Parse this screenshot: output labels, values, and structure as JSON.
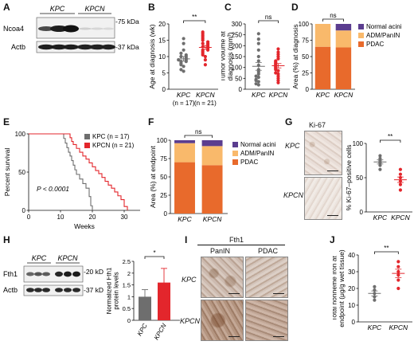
{
  "panels": {
    "A": {
      "label": "A",
      "groups": [
        "KPC",
        "KPCN"
      ],
      "proteins": [
        "Ncoa4",
        "Actb"
      ],
      "markers": [
        "-75 kDa",
        "-37 kDa"
      ]
    },
    "B": {
      "label": "B",
      "sig": "**"
    },
    "C": {
      "label": "C",
      "sig": "ns"
    },
    "D": {
      "label": "D",
      "sig": "ns"
    },
    "E": {
      "label": "E",
      "pvalue": "P < 0.0001"
    },
    "F": {
      "label": "F",
      "sig": "ns"
    },
    "G": {
      "label": "G",
      "stain": "Ki-67",
      "rows": [
        "KPC",
        "KPCN"
      ],
      "sig": "**"
    },
    "H": {
      "label": "H",
      "groups": [
        "KPC",
        "KPCN"
      ],
      "proteins": [
        "Fth1",
        "Actb"
      ],
      "markers": [
        "-20 kDa",
        "-37 kDa"
      ],
      "sig": "*"
    },
    "I": {
      "label": "I",
      "stain": "Fth1",
      "columns": [
        "PanIN",
        "PDAC"
      ],
      "rows": [
        "KPC",
        "KPCN"
      ]
    },
    "J": {
      "label": "J",
      "sig": "**"
    }
  },
  "colors": {
    "kpc": "#6e6e6e",
    "kpcn": "#e3262c",
    "normal": "#5b3d8f",
    "adm": "#f9b96b",
    "pdac": "#e86a2c"
  },
  "chart_data": [
    {
      "panel": "B",
      "type": "scatter",
      "ylabel": "Age at diagnosis (wk)",
      "categories": [
        "KPC",
        "KPCN"
      ],
      "category_notes": [
        "(n = 17)",
        "(n = 21)"
      ],
      "ylim": [
        0,
        20
      ],
      "yticks": [
        0,
        5,
        10,
        15,
        20
      ],
      "series": [
        {
          "name": "KPC",
          "values": [
            5.5,
            6,
            7,
            7.5,
            8,
            8.5,
            8.5,
            9,
            9,
            9.5,
            10,
            10,
            10.5,
            11,
            12,
            14,
            15.5
          ],
          "mean": 9.3,
          "sem": 0.7
        },
        {
          "name": "KPCN",
          "values": [
            7.5,
            9,
            10,
            10.5,
            11,
            11.5,
            12,
            12,
            12.5,
            13,
            13,
            13.5,
            14,
            14,
            14.5,
            15,
            15.5,
            16,
            16.5,
            17,
            17.5
          ],
          "mean": 12.8,
          "sem": 0.6
        }
      ]
    },
    {
      "panel": "C",
      "type": "scatter",
      "ylabel": "Tumor volume at diagnosis (mm³)",
      "categories": [
        "KPC",
        "KPCN"
      ],
      "ylim": [
        0,
        300
      ],
      "yticks": [
        0,
        50,
        100,
        150,
        200,
        250,
        300
      ],
      "series": [
        {
          "name": "KPC",
          "values": [
            20,
            25,
            35,
            40,
            45,
            55,
            60,
            70,
            80,
            90,
            110,
            130,
            150,
            180,
            210,
            230,
            255
          ],
          "mean": 105,
          "sem": 18
        },
        {
          "name": "KPCN",
          "values": [
            30,
            40,
            50,
            60,
            70,
            75,
            85,
            90,
            95,
            100,
            105,
            110,
            115,
            120,
            125,
            130,
            140,
            150,
            160,
            170,
            185
          ],
          "mean": 108,
          "sem": 10
        }
      ]
    },
    {
      "panel": "D",
      "type": "bar",
      "stacked": true,
      "ylabel": "Area (%) at diagnosis",
      "categories": [
        "KPC",
        "KPCN"
      ],
      "ylim": [
        0,
        100
      ],
      "yticks": [
        0,
        25,
        50,
        75,
        100
      ],
      "legend": "right",
      "series": [
        {
          "name": "PDAC",
          "values": [
            65,
            64
          ]
        },
        {
          "name": "ADM/PanIN",
          "values": [
            35,
            26
          ]
        },
        {
          "name": "Normal acini",
          "values": [
            0,
            10
          ]
        }
      ]
    },
    {
      "panel": "E",
      "type": "line",
      "ylabel": "Percent survival",
      "xlabel": "Weeks",
      "xlim": [
        0,
        35
      ],
      "ylim": [
        0,
        100
      ],
      "xticks": [
        0,
        10,
        20,
        30
      ],
      "yticks": [
        0,
        50,
        100
      ],
      "legend": "top-right",
      "series": [
        {
          "name": "KPC (n = 17)",
          "x": [
            0,
            11,
            11.5,
            12,
            12.5,
            13,
            13.5,
            14,
            14.5,
            15,
            16,
            17,
            18,
            19,
            19.5,
            20
          ],
          "y": [
            100,
            94,
            88,
            82,
            76,
            71,
            65,
            59,
            53,
            47,
            41,
            35,
            29,
            18,
            6,
            0
          ]
        },
        {
          "name": "KPCN (n = 21)",
          "x": [
            0,
            13,
            13.5,
            14,
            15,
            16,
            17,
            18,
            19,
            20,
            21,
            22,
            23,
            24,
            25,
            26,
            27,
            28,
            29,
            30,
            31
          ],
          "y": [
            100,
            95,
            90,
            86,
            81,
            76,
            71,
            67,
            62,
            57,
            52,
            48,
            43,
            38,
            33,
            29,
            24,
            19,
            14,
            5,
            0
          ]
        }
      ]
    },
    {
      "panel": "F",
      "type": "bar",
      "stacked": true,
      "ylabel": "Area (%) at endpoint",
      "categories": [
        "KPC",
        "KPCN"
      ],
      "ylim": [
        0,
        100
      ],
      "yticks": [
        0,
        25,
        50,
        75,
        100
      ],
      "legend": "right",
      "series": [
        {
          "name": "PDAC",
          "values": [
            70,
            66
          ]
        },
        {
          "name": "ADM/PanIN",
          "values": [
            26,
            26
          ]
        },
        {
          "name": "Normal acini",
          "values": [
            4,
            8
          ]
        }
      ]
    },
    {
      "panel": "G",
      "type": "scatter",
      "ylabel": "% Ki-67–positive cells",
      "categories": [
        "KPC",
        "KPCN"
      ],
      "ylim": [
        0,
        100
      ],
      "yticks": [
        0,
        50,
        100
      ],
      "series": [
        {
          "name": "KPC",
          "values": [
            62,
            68,
            72,
            75,
            78,
            82
          ],
          "mean": 73,
          "sem": 3
        },
        {
          "name": "KPCN",
          "values": [
            32,
            40,
            45,
            50,
            55,
            62
          ],
          "mean": 47,
          "sem": 4
        }
      ]
    },
    {
      "panel": "H",
      "type": "bar",
      "ylabel": "Normalized Fth1 protein levels",
      "categories": [
        "KPC",
        "KPCN"
      ],
      "ylim": [
        0,
        2.5
      ],
      "yticks": [
        0,
        0.5,
        1.0,
        1.5,
        2.0,
        2.5
      ],
      "series": [
        {
          "name": "Fth1",
          "values": [
            1.0,
            1.6
          ],
          "errors": [
            0.3,
            0.6
          ]
        }
      ]
    },
    {
      "panel": "J",
      "type": "scatter",
      "ylabel": "Total nonheme iron at endpoint (μg/g wet tissue)",
      "categories": [
        "KPC",
        "KPCN"
      ],
      "ylim": [
        0,
        40
      ],
      "yticks": [
        0,
        10,
        20,
        30,
        40
      ],
      "series": [
        {
          "name": "KPC",
          "values": [
            13,
            15,
            17,
            19,
            21
          ],
          "mean": 17,
          "sem": 1.5
        },
        {
          "name": "KPCN",
          "values": [
            20,
            25,
            28,
            30,
            33,
            36
          ],
          "mean": 29,
          "sem": 2.5
        }
      ]
    }
  ]
}
